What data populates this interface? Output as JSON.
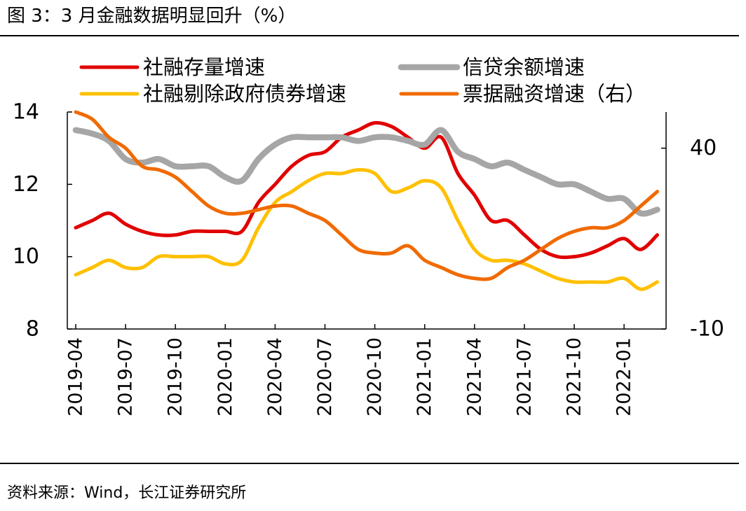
{
  "header": {
    "title": "图 3：3 月金融数据明显回升（%）"
  },
  "footer": {
    "source": "资料来源：Wind，长江证券研究所"
  },
  "chart_data": {
    "type": "line",
    "x": [
      "2019-04",
      "2019-05",
      "2019-06",
      "2019-07",
      "2019-08",
      "2019-09",
      "2019-10",
      "2019-11",
      "2019-12",
      "2020-01",
      "2020-02",
      "2020-03",
      "2020-04",
      "2020-05",
      "2020-06",
      "2020-07",
      "2020-08",
      "2020-09",
      "2020-10",
      "2020-11",
      "2020-12",
      "2021-01",
      "2021-02",
      "2021-03",
      "2021-04",
      "2021-05",
      "2021-06",
      "2021-07",
      "2021-08",
      "2021-09",
      "2021-10",
      "2021-11",
      "2021-12",
      "2022-01",
      "2022-02",
      "2022-03"
    ],
    "tick_labels": [
      "2019-04",
      "2019-07",
      "2019-10",
      "2020-01",
      "2020-04",
      "2020-07",
      "2020-10",
      "2021-01",
      "2021-04",
      "2021-07",
      "2021-10",
      "2022-01"
    ],
    "left_axis": {
      "ylim": [
        8,
        14
      ],
      "ticks": [
        "8",
        "10",
        "12",
        "14"
      ]
    },
    "right_axis": {
      "ylim": [
        -10,
        50
      ],
      "ticks": [
        "-10",
        "40"
      ]
    },
    "series": [
      {
        "name": "社融存量增速",
        "axis": "left",
        "color": "#e00000",
        "values": [
          10.8,
          11.0,
          11.2,
          10.9,
          10.7,
          10.6,
          10.6,
          10.7,
          10.7,
          10.7,
          10.7,
          11.5,
          12.0,
          12.5,
          12.8,
          12.9,
          13.3,
          13.5,
          13.7,
          13.6,
          13.3,
          13.0,
          13.3,
          12.3,
          11.7,
          11.0,
          11.0,
          10.6,
          10.2,
          10.0,
          10.0,
          10.1,
          10.3,
          10.5,
          10.2,
          10.6
        ]
      },
      {
        "name": "信贷余额增速",
        "axis": "left",
        "color": "#a6a6a6",
        "values": [
          13.5,
          13.4,
          13.2,
          12.7,
          12.6,
          12.7,
          12.5,
          12.5,
          12.5,
          12.2,
          12.1,
          12.7,
          13.1,
          13.3,
          13.3,
          13.3,
          13.3,
          13.2,
          13.3,
          13.3,
          13.2,
          13.1,
          13.5,
          12.9,
          12.7,
          12.5,
          12.6,
          12.4,
          12.2,
          12.0,
          12.0,
          11.8,
          11.6,
          11.6,
          11.2,
          11.3
        ]
      },
      {
        "name": "社融剔除政府债券增速",
        "axis": "left",
        "color": "#ffc000",
        "values": [
          9.5,
          9.7,
          9.9,
          9.7,
          9.7,
          10.0,
          10.0,
          10.0,
          10.0,
          9.8,
          9.9,
          10.8,
          11.5,
          11.8,
          12.1,
          12.3,
          12.3,
          12.4,
          12.3,
          11.8,
          11.9,
          12.1,
          11.9,
          11.0,
          10.2,
          9.9,
          9.9,
          9.8,
          9.6,
          9.4,
          9.3,
          9.3,
          9.3,
          9.4,
          9.1,
          9.3
        ]
      },
      {
        "name": "票据融资增速（右）",
        "axis": "right",
        "color": "#f06a00",
        "values": [
          50,
          48,
          43,
          40,
          35,
          34,
          32,
          28,
          24,
          22,
          22,
          23,
          24,
          24,
          22,
          20,
          16,
          12,
          11,
          11,
          13,
          9,
          7,
          5,
          4,
          4,
          7,
          9,
          12,
          15,
          17,
          18,
          18,
          20,
          24,
          28
        ]
      }
    ]
  }
}
